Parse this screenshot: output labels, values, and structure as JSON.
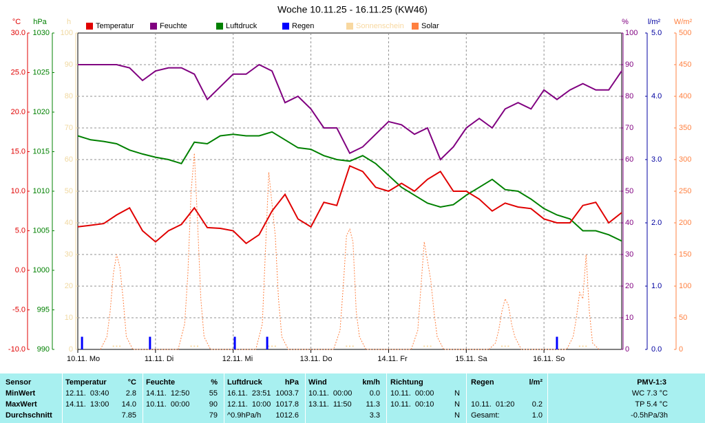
{
  "chart_data": {
    "type": "line",
    "title": "Woche 10.11.25 - 16.11.25 (KW46)",
    "grid": true,
    "xlim": [
      0,
      168
    ],
    "xticks": [
      {
        "value": 0,
        "label": "10.11.  Mo"
      },
      {
        "value": 24,
        "label": "11.11.  Di"
      },
      {
        "value": 48,
        "label": "12.11.  Mi"
      },
      {
        "value": 72,
        "label": "13.11.  Do"
      },
      {
        "value": 96,
        "label": "14.11.  Fr"
      },
      {
        "value": 120,
        "label": "15.11.  Sa"
      },
      {
        "value": 144,
        "label": "16.11.  So"
      }
    ],
    "axes": [
      {
        "label": "°C",
        "color": "#e00000",
        "ylim": [
          -10,
          30
        ],
        "yticks": [
          {
            "value": 30,
            "label": "30.0"
          },
          {
            "value": 25,
            "label": "25.0"
          },
          {
            "value": 20,
            "label": "20.0"
          },
          {
            "value": 15,
            "label": "15.0"
          },
          {
            "value": 10,
            "label": "10.0"
          },
          {
            "value": 5,
            "label": "5.0"
          },
          {
            "value": 0,
            "label": "0.0"
          },
          {
            "value": -5,
            "label": "-5.0"
          },
          {
            "value": -10,
            "label": "-10.0"
          }
        ]
      },
      {
        "label": "hPa",
        "color": "#008000",
        "ylim": [
          990,
          1030
        ],
        "yticks": [
          1030,
          1025,
          1020,
          1015,
          1010,
          1005,
          1000,
          995,
          990
        ]
      },
      {
        "label": "h",
        "color": "#f0d8a0",
        "ylim": [
          0,
          100
        ],
        "yticks": [
          100,
          90,
          80,
          70,
          60,
          50,
          40,
          30,
          20,
          10,
          0
        ]
      },
      {
        "label": "%",
        "color": "#800080",
        "ylim": [
          0,
          100
        ],
        "yticks": [
          100,
          90,
          80,
          70,
          60,
          50,
          40,
          30,
          20,
          10,
          0
        ],
        "grid": true
      },
      {
        "label": "l/m²",
        "color": "#0000a0",
        "ylim": [
          0,
          5
        ],
        "yticks": [
          {
            "value": 5,
            "label": "5.0"
          },
          {
            "value": 4,
            "label": "4.0"
          },
          {
            "value": 3,
            "label": "3.0"
          },
          {
            "value": 2,
            "label": "2.0"
          },
          {
            "value": 1,
            "label": "1.0"
          },
          {
            "value": 0,
            "label": "0.0"
          }
        ]
      },
      {
        "label": "W/m²",
        "color": "#ff8040",
        "ylim": [
          0,
          500
        ],
        "yticks": [
          500,
          450,
          400,
          350,
          300,
          250,
          200,
          150,
          100,
          50,
          0
        ]
      }
    ],
    "series": [
      {
        "name": "Temperatur",
        "color": "#e00000",
        "axis": 0,
        "type": "line",
        "x": [
          0,
          4,
          8,
          12,
          16,
          20,
          24,
          28,
          32,
          36,
          40,
          44,
          48,
          52,
          56,
          60,
          64,
          68,
          72,
          76,
          80,
          84,
          88,
          92,
          96,
          100,
          104,
          108,
          112,
          116,
          120,
          124,
          128,
          132,
          136,
          140,
          144,
          148,
          152,
          156,
          160,
          164,
          168
        ],
        "values": [
          5.5,
          5.7,
          5.9,
          7.0,
          7.9,
          5.0,
          3.6,
          5.0,
          5.8,
          7.9,
          5.4,
          5.3,
          5.0,
          3.4,
          4.5,
          7.5,
          9.6,
          6.5,
          5.5,
          8.6,
          8.2,
          13.2,
          12.5,
          10.5,
          10.0,
          11.0,
          10.0,
          11.5,
          12.5,
          10.0,
          10.0,
          9.0,
          7.5,
          8.5,
          8.0,
          7.8,
          6.5,
          6.0,
          6.0,
          8.2,
          8.6,
          6.0,
          7.3
        ]
      },
      {
        "name": "Feuchte",
        "color": "#800080",
        "axis": 3,
        "type": "line",
        "x": [
          0,
          4,
          8,
          12,
          16,
          20,
          24,
          28,
          32,
          36,
          40,
          44,
          48,
          52,
          56,
          60,
          64,
          68,
          72,
          76,
          80,
          84,
          88,
          92,
          96,
          100,
          104,
          108,
          112,
          116,
          120,
          124,
          128,
          132,
          136,
          140,
          144,
          148,
          152,
          156,
          160,
          164,
          168
        ],
        "values": [
          90,
          90,
          90,
          90,
          89,
          85,
          88,
          89,
          89,
          87,
          79,
          83,
          87,
          87,
          90,
          88,
          78,
          80,
          76,
          70,
          70,
          62,
          64,
          68,
          72,
          71,
          68,
          70,
          60,
          64,
          70,
          73,
          70,
          76,
          78,
          76,
          82,
          79,
          82,
          84,
          82,
          82,
          88
        ]
      },
      {
        "name": "Luftdruck",
        "color": "#008000",
        "axis": 1,
        "type": "line",
        "x": [
          0,
          4,
          8,
          12,
          16,
          20,
          24,
          28,
          32,
          36,
          40,
          44,
          48,
          52,
          56,
          60,
          64,
          68,
          72,
          76,
          80,
          84,
          88,
          92,
          96,
          100,
          104,
          108,
          112,
          116,
          120,
          124,
          128,
          132,
          136,
          140,
          144,
          148,
          152,
          156,
          160,
          164,
          168
        ],
        "values": [
          1017.0,
          1016.5,
          1016.3,
          1016.0,
          1015.2,
          1014.7,
          1014.3,
          1014.0,
          1013.5,
          1016.2,
          1016.0,
          1017.0,
          1017.2,
          1017.0,
          1017.0,
          1017.5,
          1016.5,
          1015.5,
          1015.3,
          1014.5,
          1014.0,
          1013.8,
          1014.5,
          1013.5,
          1012.0,
          1010.5,
          1009.5,
          1008.5,
          1008.0,
          1008.3,
          1009.5,
          1010.5,
          1011.5,
          1010.2,
          1010.0,
          1009.0,
          1007.8,
          1007.0,
          1006.5,
          1005.0,
          1005.0,
          1004.5,
          1003.7
        ]
      },
      {
        "name": "Regen",
        "color": "#0000ff",
        "axis": 4,
        "type": "bar",
        "x": [
          1.3,
          22.3,
          48.5,
          58.5,
          148
        ],
        "values": [
          0.2,
          0.2,
          0.2,
          0.2,
          0.2
        ]
      },
      {
        "name": "Sonnenschein",
        "color": "#f8d8a0",
        "axis": 2,
        "type": "scatter",
        "x": [
          11,
          12,
          13,
          35,
          36,
          37,
          59,
          60,
          61,
          83,
          84,
          85,
          107,
          108,
          109,
          131,
          132,
          133,
          155,
          156,
          157
        ],
        "values": [
          1,
          1,
          1,
          1,
          1,
          1,
          1,
          1,
          1,
          1,
          1,
          1,
          1,
          1,
          1,
          1,
          1,
          1,
          1,
          1,
          1
        ]
      },
      {
        "name": "Solar",
        "color": "#ff8040",
        "axis": 5,
        "type": "line",
        "dashed": true,
        "x": [
          7,
          9,
          10,
          11,
          12,
          13,
          14,
          15,
          17,
          31,
          33,
          34,
          35,
          36,
          37,
          38,
          39,
          41,
          55,
          57,
          58,
          59,
          60,
          61,
          62,
          63,
          65,
          79,
          81,
          82,
          83,
          84,
          85,
          86,
          87,
          89,
          103,
          105,
          106,
          107,
          108,
          109,
          110,
          111,
          113,
          127,
          129,
          130,
          131,
          132,
          133,
          134,
          135,
          137,
          151,
          153,
          154,
          155,
          156,
          157,
          158,
          159,
          161
        ],
        "values": [
          0,
          20,
          60,
          120,
          150,
          130,
          80,
          20,
          0,
          0,
          40,
          120,
          250,
          310,
          200,
          80,
          20,
          0,
          0,
          40,
          160,
          280,
          230,
          180,
          80,
          20,
          0,
          0,
          30,
          100,
          180,
          190,
          170,
          60,
          20,
          0,
          0,
          30,
          100,
          170,
          140,
          110,
          60,
          20,
          0,
          0,
          10,
          30,
          60,
          80,
          70,
          40,
          20,
          0,
          0,
          20,
          50,
          90,
          80,
          150,
          60,
          10,
          0
        ]
      }
    ]
  },
  "table": {
    "header": {
      "sensor": "Sensor",
      "temp": "Temperatur",
      "temp_unit": "°C",
      "feuchte": "Feuchte",
      "feuchte_unit": "%",
      "druck": "Luftdruck",
      "druck_unit": "hPa",
      "wind": "Wind",
      "wind_unit": "km/h",
      "richtung": "Richtung",
      "regen": "Regen",
      "regen_unit": "l/m²",
      "pmv": "PMV-1:3"
    },
    "rows": [
      {
        "sensor": "MinWert",
        "temp_time": "12.11.  03:40",
        "temp_val": "2.8",
        "feuchte_time": "14.11.  12:50",
        "feuchte_val": "55",
        "druck_time": "16.11.  23:51",
        "druck_val": "1003.7",
        "wind_time": "10.11.  00:00",
        "wind_val": "0.0",
        "richtung_time": "10.11.  00:00",
        "richtung_val": "N",
        "pmv": "WC 7.3 °C"
      },
      {
        "sensor": "MaxWert",
        "temp_time": "14.11.  13:00",
        "temp_val": "14.0",
        "feuchte_time": "10.11.  00:00",
        "feuchte_val": "90",
        "druck_time": "12.11.  10:00",
        "druck_val": "1017.8",
        "wind_time": "13.11.  11:50",
        "wind_val": "11.3",
        "richtung_time": "10.11.  00:10",
        "richtung_val": "N",
        "regen_time": "10.11.  01:20",
        "regen_val": "0.2",
        "pmv": "TP 5.4 °C"
      },
      {
        "sensor": "Durchschnitt",
        "temp_val": "7.85",
        "feuchte_val": "79",
        "druck_time": "^0.9hPa/h",
        "druck_val": "1012.6",
        "wind_val": "3.3",
        "richtung_val": "N",
        "regen_time": "Gesamt:",
        "regen_val": "1.0",
        "pmv": "-0.5hPa/3h"
      }
    ]
  }
}
